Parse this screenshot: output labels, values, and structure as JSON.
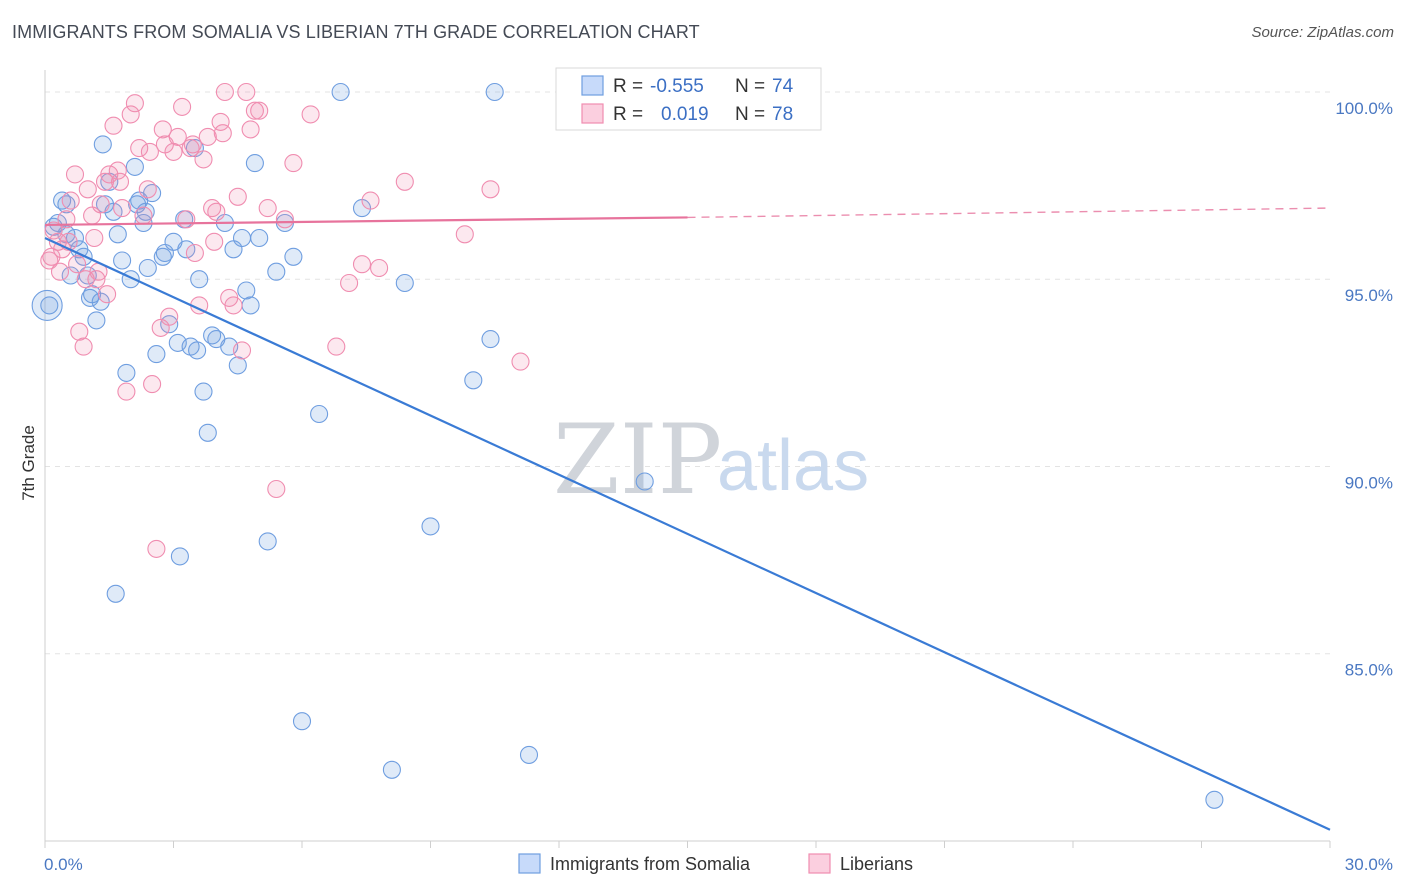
{
  "title": "IMMIGRANTS FROM SOMALIA VS LIBERIAN 7TH GRADE CORRELATION CHART",
  "source": "Source: ZipAtlas.com",
  "watermark": {
    "zip": "ZIP",
    "atlas": "atlas"
  },
  "legend_top": [
    {
      "r_label": "R =",
      "r_value": "-0.555",
      "n_label": "N =",
      "n_value": "74"
    },
    {
      "r_label": "R =",
      "r_value": "0.019",
      "n_label": "N =",
      "n_value": "78"
    }
  ],
  "chart_data": {
    "type": "scatter",
    "xlabel": "",
    "ylabel": "7th Grade",
    "xlim": [
      0,
      30
    ],
    "ylim": [
      80,
      100.8
    ],
    "x_tick_labels": [
      "0.0%",
      "30.0%"
    ],
    "y_tick_labels": [
      "85.0%",
      "90.0%",
      "95.0%",
      "100.0%"
    ],
    "y_ticks": [
      85,
      90,
      95,
      100
    ],
    "grid": true,
    "legend_position": "bottom",
    "series": [
      {
        "name": "Immigrants from Somalia",
        "color": "#6f9ee0",
        "trend": {
          "x": [
            0,
            30
          ],
          "y": [
            96.1,
            80.3
          ],
          "style": "solid"
        },
        "points": [
          [
            0.1,
            94.3
          ],
          [
            0.3,
            96.5
          ],
          [
            0.4,
            97.1
          ],
          [
            0.5,
            96.2
          ],
          [
            0.6,
            95.1
          ],
          [
            0.8,
            95.8
          ],
          [
            0.9,
            95.6
          ],
          [
            1.0,
            95.1
          ],
          [
            1.1,
            94.6
          ],
          [
            1.2,
            93.9
          ],
          [
            1.3,
            94.4
          ],
          [
            1.4,
            97.0
          ],
          [
            1.5,
            97.6
          ],
          [
            1.6,
            96.8
          ],
          [
            1.7,
            96.2
          ],
          [
            1.8,
            95.5
          ],
          [
            1.9,
            92.5
          ],
          [
            2.0,
            95.0
          ],
          [
            2.1,
            98.0
          ],
          [
            2.2,
            97.1
          ],
          [
            2.3,
            96.5
          ],
          [
            2.4,
            95.3
          ],
          [
            2.5,
            97.3
          ],
          [
            2.6,
            93.0
          ],
          [
            2.8,
            95.7
          ],
          [
            2.9,
            93.8
          ],
          [
            3.0,
            96.0
          ],
          [
            3.1,
            93.3
          ],
          [
            3.3,
            95.8
          ],
          [
            3.4,
            93.2
          ],
          [
            3.5,
            98.5
          ],
          [
            3.6,
            95.0
          ],
          [
            3.7,
            92.0
          ],
          [
            3.8,
            90.9
          ],
          [
            3.9,
            93.5
          ],
          [
            4.0,
            93.4
          ],
          [
            4.2,
            96.5
          ],
          [
            4.3,
            93.2
          ],
          [
            4.4,
            95.8
          ],
          [
            4.5,
            92.7
          ],
          [
            4.6,
            96.1
          ],
          [
            4.7,
            94.7
          ],
          [
            4.8,
            94.3
          ],
          [
            4.9,
            98.1
          ],
          [
            5.0,
            96.1
          ],
          [
            5.2,
            88.0
          ],
          [
            5.4,
            95.2
          ],
          [
            5.6,
            96.5
          ],
          [
            5.8,
            95.6
          ],
          [
            6.0,
            83.2
          ],
          [
            6.4,
            91.4
          ],
          [
            6.9,
            100.0
          ],
          [
            7.4,
            96.9
          ],
          [
            8.1,
            81.9
          ],
          [
            8.4,
            94.9
          ],
          [
            9.0,
            88.4
          ],
          [
            10.0,
            92.3
          ],
          [
            10.4,
            93.4
          ],
          [
            10.5,
            100.0
          ],
          [
            11.3,
            82.3
          ],
          [
            14.0,
            89.6
          ],
          [
            27.3,
            81.1
          ],
          [
            0.2,
            96.4
          ],
          [
            0.7,
            96.1
          ],
          [
            1.05,
            94.5
          ],
          [
            1.35,
            98.6
          ],
          [
            2.15,
            97.0
          ],
          [
            2.35,
            96.8
          ],
          [
            2.75,
            95.6
          ],
          [
            3.25,
            96.6
          ],
          [
            3.55,
            93.1
          ],
          [
            1.65,
            86.6
          ],
          [
            3.15,
            87.6
          ],
          [
            0.5,
            97.0
          ]
        ]
      },
      {
        "name": "Liberians",
        "color": "#f08db0",
        "trend": {
          "x": [
            0,
            15
          ],
          "y": [
            96.45,
            96.65
          ],
          "x_dash_end": 30,
          "y_dash_end": 96.9,
          "style": "solid-then-dashed"
        },
        "points": [
          [
            0.1,
            95.5
          ],
          [
            0.2,
            96.3
          ],
          [
            0.3,
            96.0
          ],
          [
            0.4,
            95.8
          ],
          [
            0.5,
            96.6
          ],
          [
            0.6,
            97.1
          ],
          [
            0.7,
            97.8
          ],
          [
            0.8,
            93.6
          ],
          [
            0.9,
            93.2
          ],
          [
            1.0,
            97.4
          ],
          [
            1.1,
            96.7
          ],
          [
            1.2,
            95.0
          ],
          [
            1.3,
            97.0
          ],
          [
            1.4,
            97.6
          ],
          [
            1.5,
            97.8
          ],
          [
            1.6,
            99.1
          ],
          [
            1.7,
            97.9
          ],
          [
            1.8,
            96.9
          ],
          [
            1.9,
            92.0
          ],
          [
            2.0,
            99.4
          ],
          [
            2.1,
            99.7
          ],
          [
            2.2,
            98.5
          ],
          [
            2.3,
            96.7
          ],
          [
            2.4,
            97.4
          ],
          [
            2.5,
            92.2
          ],
          [
            2.6,
            87.8
          ],
          [
            2.7,
            93.7
          ],
          [
            2.8,
            98.6
          ],
          [
            2.9,
            94.0
          ],
          [
            3.0,
            98.4
          ],
          [
            3.1,
            98.8
          ],
          [
            3.2,
            99.6
          ],
          [
            3.3,
            96.6
          ],
          [
            3.4,
            98.5
          ],
          [
            3.5,
            95.7
          ],
          [
            3.6,
            94.3
          ],
          [
            3.7,
            98.2
          ],
          [
            3.8,
            98.8
          ],
          [
            3.9,
            96.9
          ],
          [
            4.0,
            96.8
          ],
          [
            4.1,
            99.2
          ],
          [
            4.2,
            100.0
          ],
          [
            4.3,
            94.5
          ],
          [
            4.4,
            94.3
          ],
          [
            4.5,
            97.2
          ],
          [
            4.6,
            93.1
          ],
          [
            4.7,
            100.0
          ],
          [
            4.8,
            99.0
          ],
          [
            4.9,
            99.5
          ],
          [
            5.0,
            99.5
          ],
          [
            5.2,
            96.9
          ],
          [
            5.4,
            89.4
          ],
          [
            5.6,
            96.6
          ],
          [
            5.8,
            98.1
          ],
          [
            6.2,
            99.4
          ],
          [
            6.8,
            93.2
          ],
          [
            7.1,
            94.9
          ],
          [
            7.4,
            95.4
          ],
          [
            7.6,
            97.1
          ],
          [
            7.8,
            95.3
          ],
          [
            8.4,
            97.6
          ],
          [
            9.8,
            96.2
          ],
          [
            10.4,
            97.4
          ],
          [
            11.1,
            92.8
          ],
          [
            0.15,
            95.6
          ],
          [
            0.35,
            95.2
          ],
          [
            0.55,
            96.0
          ],
          [
            0.75,
            95.4
          ],
          [
            0.95,
            95.0
          ],
          [
            1.15,
            96.1
          ],
          [
            1.45,
            94.6
          ],
          [
            1.75,
            97.6
          ],
          [
            2.45,
            98.4
          ],
          [
            2.75,
            99.0
          ],
          [
            3.45,
            98.6
          ],
          [
            3.95,
            96.0
          ],
          [
            4.15,
            98.9
          ],
          [
            1.25,
            95.2
          ]
        ]
      }
    ]
  }
}
